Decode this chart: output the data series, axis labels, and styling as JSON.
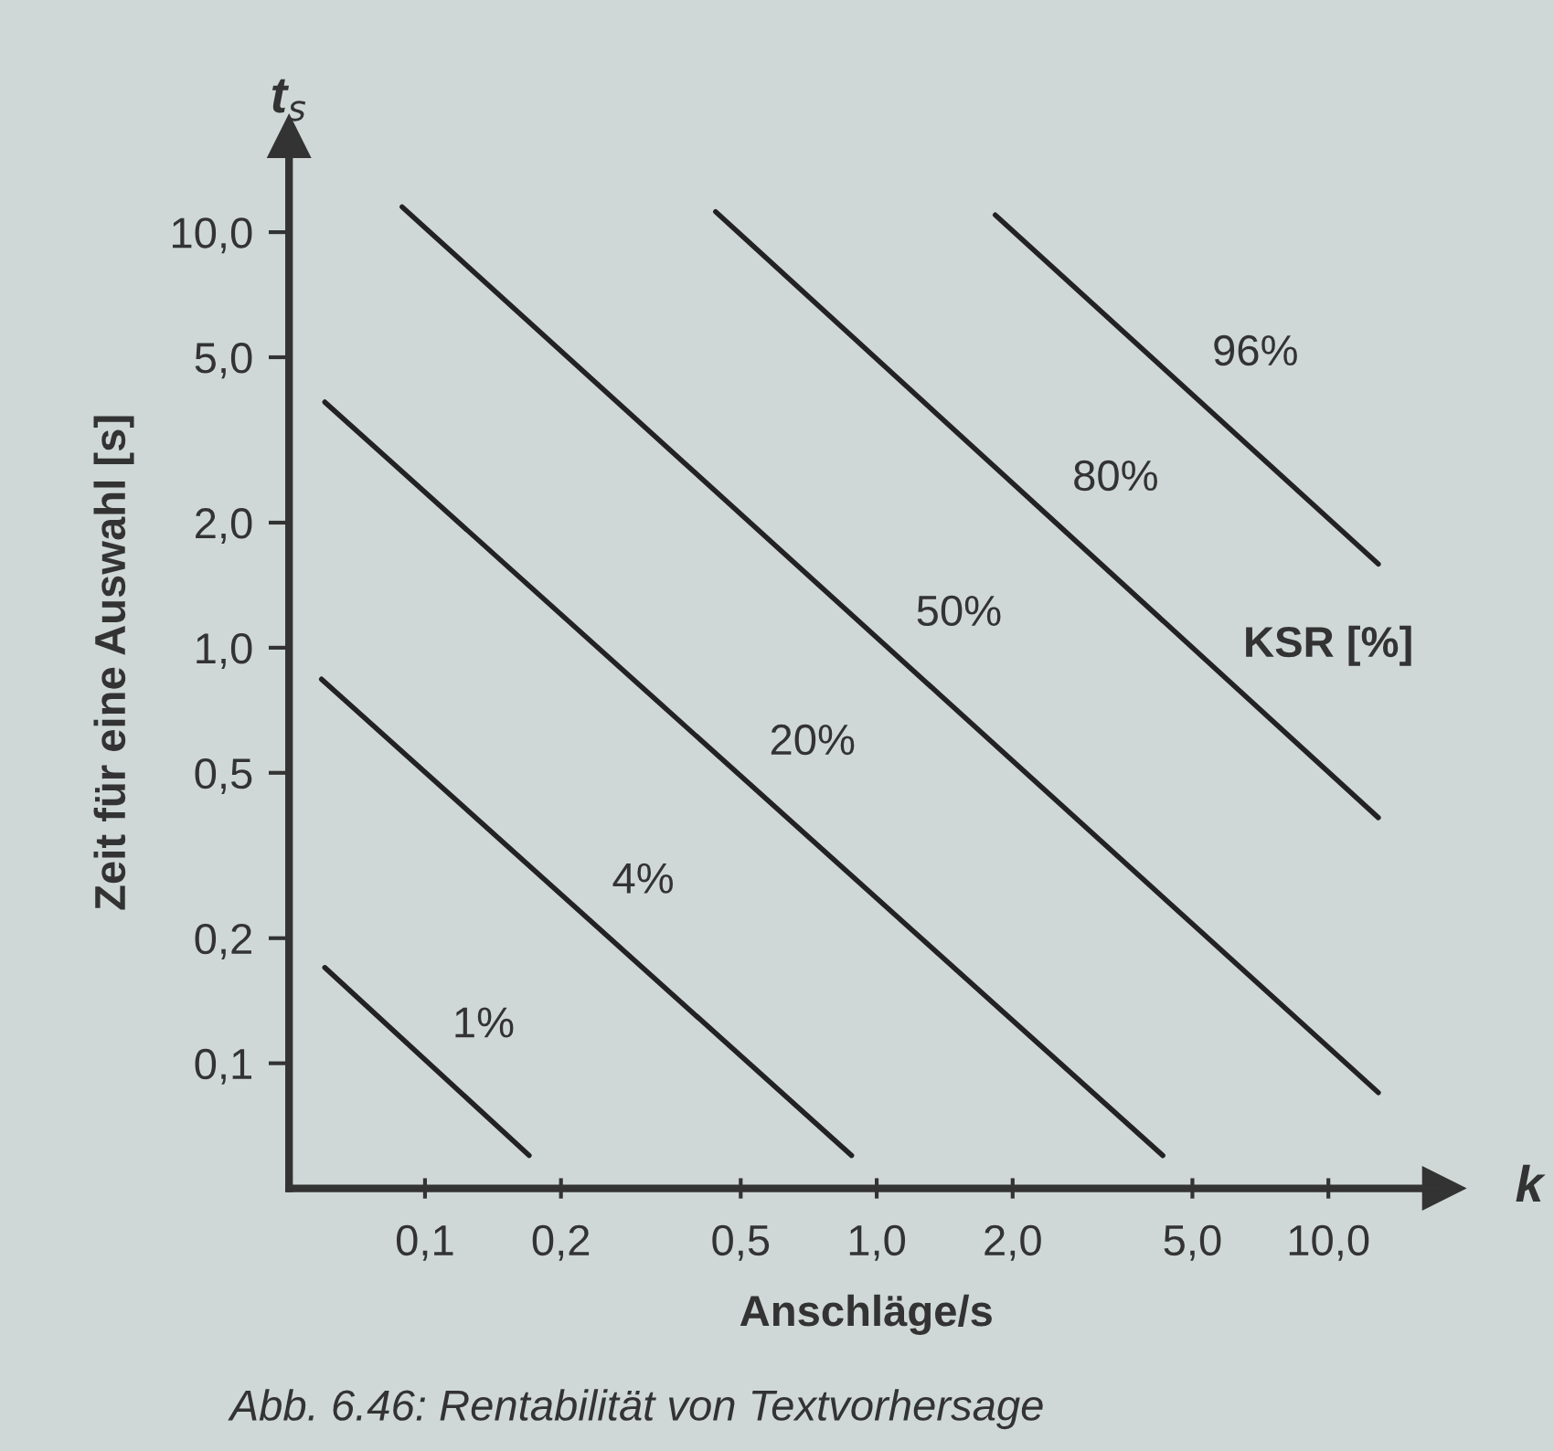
{
  "chart_data": {
    "type": "line",
    "xlabel": "Anschläge/s",
    "ylabel": "Zeit für eine Auswahl [s]",
    "annotations": [
      "t$_{s}$",
      "k",
      "KSR [%]",
      "Abb. 6.46: Rentabilität von Textvorhersage"
    ],
    "log": "xy",
    "xlim": [
      0.05,
      18
    ],
    "ylim": [
      0.05,
      17
    ],
    "xticks": [
      {
        "value": 0.1,
        "label": "0,1"
      },
      {
        "value": 0.2,
        "label": "0,2"
      },
      {
        "value": 0.5,
        "label": "0,5"
      },
      {
        "value": 1,
        "label": "1,0"
      },
      {
        "value": 2,
        "label": "2,0"
      },
      {
        "value": 5,
        "label": "5,0"
      },
      {
        "value": 10,
        "label": "10,0"
      }
    ],
    "yticks": [
      {
        "value": 0.1,
        "label": "0,1"
      },
      {
        "value": 0.2,
        "label": "0,2"
      },
      {
        "value": 0.5,
        "label": "0,5"
      },
      {
        "value": 1,
        "label": "1,0"
      },
      {
        "value": 2,
        "label": "2,0"
      },
      {
        "value": 5,
        "label": "5,0"
      },
      {
        "value": 10,
        "label": "10,0"
      }
    ],
    "grid": false,
    "legend": false,
    "marker": "none",
    "line_style": "solid",
    "series": [
      {
        "name": "1%",
        "color": "#222222",
        "x": [
          0.06,
          0.17
        ],
        "values": [
          0.17,
          0.06
        ]
      },
      {
        "name": "4%",
        "color": "#222222",
        "x": [
          0.059,
          0.88
        ],
        "values": [
          0.84,
          0.06
        ]
      },
      {
        "name": "20%",
        "color": "#222222",
        "x": [
          0.06,
          4.3
        ],
        "values": [
          3.9,
          0.06
        ]
      },
      {
        "name": "50%",
        "color": "#222222",
        "x": [
          0.089,
          12.9
        ],
        "values": [
          11.5,
          0.085
        ]
      },
      {
        "name": "80%",
        "color": "#222222",
        "x": [
          0.44,
          12.9
        ],
        "values": [
          11.2,
          0.39
        ]
      },
      {
        "name": "96%",
        "color": "#222222",
        "x": [
          1.83,
          12.9
        ],
        "values": [
          11.0,
          1.59
        ]
      }
    ]
  }
}
